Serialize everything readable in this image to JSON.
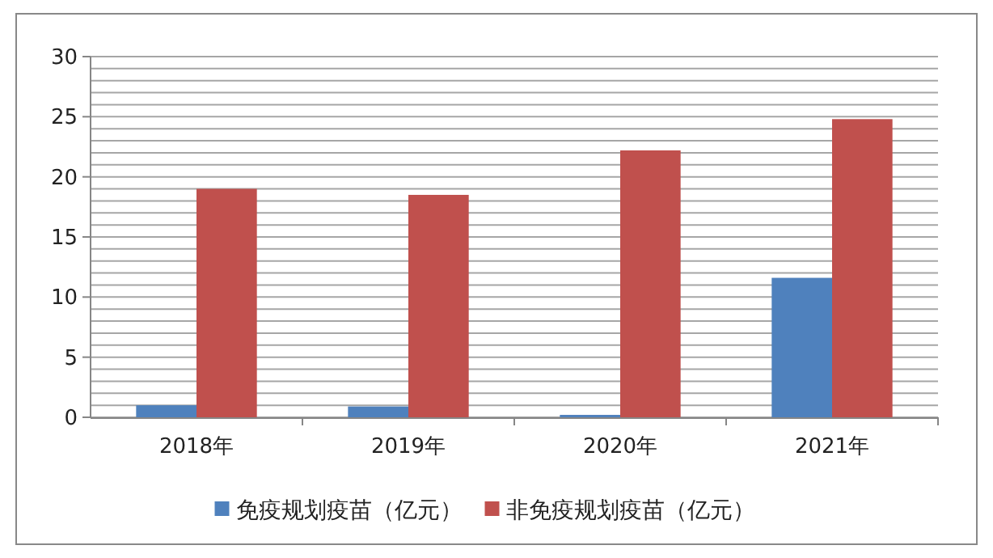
{
  "chart_data": {
    "type": "bar",
    "categories": [
      "2018年",
      "2019年",
      "2020年",
      "2021年"
    ],
    "series": [
      {
        "name": "免疫规划疫苗（亿元）",
        "color": "#4f81bd",
        "values": [
          1.0,
          0.9,
          0.2,
          11.6
        ]
      },
      {
        "name": "非免疫规划疫苗（亿元）",
        "color": "#c0504d",
        "values": [
          19.0,
          18.5,
          22.2,
          24.8
        ]
      }
    ],
    "ylim": [
      0,
      30
    ],
    "yticks": [
      0,
      {
        "value": 1,
        "label": null
      },
      {
        "value": 2,
        "label": null
      },
      {
        "value": 3,
        "label": null
      },
      {
        "value": 4,
        "label": null
      },
      5,
      {
        "value": 6,
        "label": null
      },
      {
        "value": 7,
        "label": null
      },
      {
        "value": 8,
        "label": null
      },
      {
        "value": 9,
        "label": null
      },
      10,
      {
        "value": 11,
        "label": null
      },
      {
        "value": 12,
        "label": null
      },
      {
        "value": 13,
        "label": null
      },
      {
        "value": 14,
        "label": null
      },
      15,
      {
        "value": 16,
        "label": null
      },
      {
        "value": 17,
        "label": null
      },
      {
        "value": 18,
        "label": null
      },
      {
        "value": 19,
        "label": null
      },
      20,
      {
        "value": 21,
        "label": null
      },
      {
        "value": 22,
        "label": null
      },
      {
        "value": 23,
        "label": null
      },
      {
        "value": 24,
        "label": null
      },
      25,
      {
        "value": 26,
        "label": null
      },
      {
        "value": 27,
        "label": null
      },
      {
        "value": 28,
        "label": null
      },
      {
        "value": 29,
        "label": null
      },
      30
    ],
    "grid": "y",
    "legend": "bottom"
  }
}
